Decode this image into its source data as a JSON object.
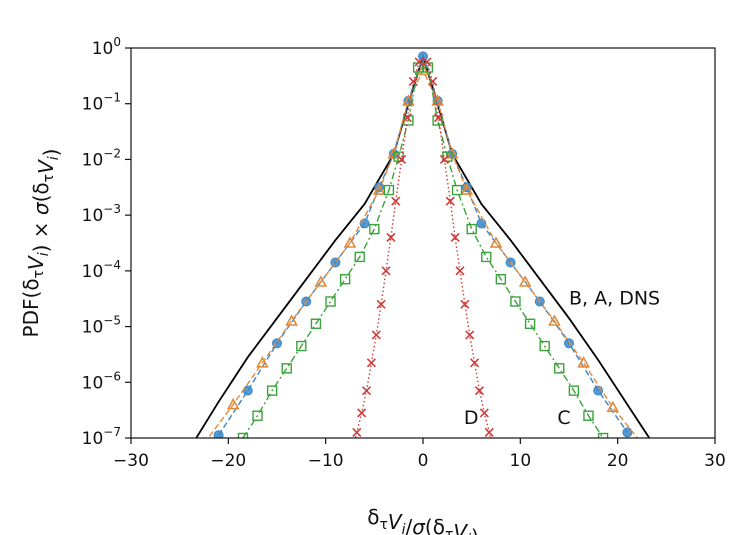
{
  "chart_data": {
    "type": "line",
    "xlabel": "δτVi/σ(δτVi)",
    "ylabel": "PDF(δτVi) × σ(δτVi)",
    "xlim": [
      -30,
      30
    ],
    "ylim_exponents": [
      -7,
      0
    ],
    "yscale": "log",
    "x_ticks": [
      -30,
      -20,
      -10,
      0,
      10,
      20,
      30
    ],
    "x_tick_labels": [
      "−30",
      "−20",
      "−10",
      "0",
      "10",
      "20",
      "30"
    ],
    "y_tick_exponents": [
      0,
      -1,
      -2,
      -3,
      -4,
      -5,
      -6,
      -7
    ],
    "y_tick_labels": [
      "10^0",
      "10^-1",
      "10^-2",
      "10^-3",
      "10^-4",
      "10^-5",
      "10^-6",
      "10^-7"
    ],
    "grid": false,
    "legend": "none",
    "annotations": [
      {
        "text": "B, A, DNS",
        "x": 15.0,
        "log10y": -4.6
      },
      {
        "text": "D",
        "x": 4.2,
        "log10y": -6.75
      },
      {
        "text": "C",
        "x": 13.8,
        "log10y": -6.75
      }
    ],
    "series": [
      {
        "style": "solid",
        "color": "#000000",
        "x": [
          -24,
          -21,
          -18,
          -15,
          -12,
          -9,
          -6,
          -3,
          -1.5,
          0,
          1.5,
          3,
          6,
          9,
          12,
          15,
          18,
          21,
          24
        ],
        "log10y": [
          -7.2,
          -6.35,
          -5.55,
          -4.85,
          -4.15,
          -3.45,
          -2.8,
          -1.9,
          -1.0,
          -0.15,
          -1.0,
          -1.9,
          -2.8,
          -3.45,
          -4.15,
          -4.85,
          -5.6,
          -6.4,
          -7.2
        ]
      },
      {
        "style": "dashed",
        "marker": "circle",
        "color": "#3a87c8",
        "x": [
          -21,
          -18,
          -15,
          -12,
          -9,
          -6,
          -4.5,
          -3,
          -1.5,
          0,
          1.5,
          3,
          4.5,
          6,
          9,
          12,
          15,
          18,
          21
        ],
        "log10y": [
          -6.95,
          -6.15,
          -5.3,
          -4.55,
          -3.85,
          -3.15,
          -2.5,
          -1.9,
          -0.95,
          -0.15,
          -0.95,
          -1.9,
          -2.5,
          -3.15,
          -3.85,
          -4.55,
          -5.3,
          -6.15,
          -6.9
        ]
      },
      {
        "style": "dashed",
        "marker": "triangle",
        "color": "#e08a3c",
        "x": [
          -22.5,
          -19.5,
          -16.5,
          -13.5,
          -10.5,
          -7.5,
          -4.5,
          -3,
          -1.5,
          0,
          1.5,
          3,
          4.5,
          7.5,
          10.5,
          13.5,
          16.5,
          19.5,
          22.5
        ],
        "log10y": [
          -7.1,
          -6.4,
          -5.65,
          -4.9,
          -4.2,
          -3.5,
          -2.55,
          -1.9,
          -0.95,
          -0.4,
          -0.95,
          -1.9,
          -2.55,
          -3.5,
          -4.2,
          -4.9,
          -5.65,
          -6.45,
          -7.1
        ]
      },
      {
        "style": "dashdot",
        "marker": "square",
        "color": "#3aa23a",
        "x": [
          -18.5,
          -17,
          -15.5,
          -14,
          -12.5,
          -11,
          -9.5,
          -8,
          -6.5,
          -5,
          -3.5,
          -2.5,
          -1.5,
          -0.5,
          0.5,
          1.5,
          2.5,
          3.5,
          5,
          6.5,
          8,
          9.5,
          11,
          12.5,
          14,
          15.5,
          17,
          18.5
        ],
        "log10y": [
          -7.0,
          -6.6,
          -6.15,
          -5.75,
          -5.35,
          -4.95,
          -4.55,
          -4.15,
          -3.75,
          -3.25,
          -2.55,
          -1.95,
          -1.3,
          -0.35,
          -0.35,
          -1.3,
          -1.95,
          -2.55,
          -3.25,
          -3.75,
          -4.15,
          -4.55,
          -4.95,
          -5.35,
          -5.75,
          -6.15,
          -6.6,
          -7.0
        ]
      },
      {
        "style": "dotted",
        "marker": "x",
        "color": "#d23b3b",
        "x": [
          -7.2,
          -6.8,
          -6.3,
          -5.8,
          -5.3,
          -4.8,
          -4.3,
          -3.8,
          -3.3,
          -2.8,
          -2.2,
          -1.6,
          -1.0,
          -0.4,
          0.4,
          1.0,
          1.6,
          2.2,
          2.8,
          3.3,
          3.8,
          4.3,
          4.8,
          5.3,
          5.8,
          6.3,
          6.8,
          7.2
        ],
        "log10y": [
          -7.2,
          -6.9,
          -6.55,
          -6.15,
          -5.65,
          -5.15,
          -4.6,
          -4.0,
          -3.4,
          -2.75,
          -2.0,
          -1.25,
          -0.6,
          -0.25,
          -0.25,
          -0.6,
          -1.25,
          -2.0,
          -2.75,
          -3.4,
          -4.0,
          -4.6,
          -5.15,
          -5.65,
          -6.15,
          -6.55,
          -6.9,
          -7.2
        ]
      }
    ]
  }
}
